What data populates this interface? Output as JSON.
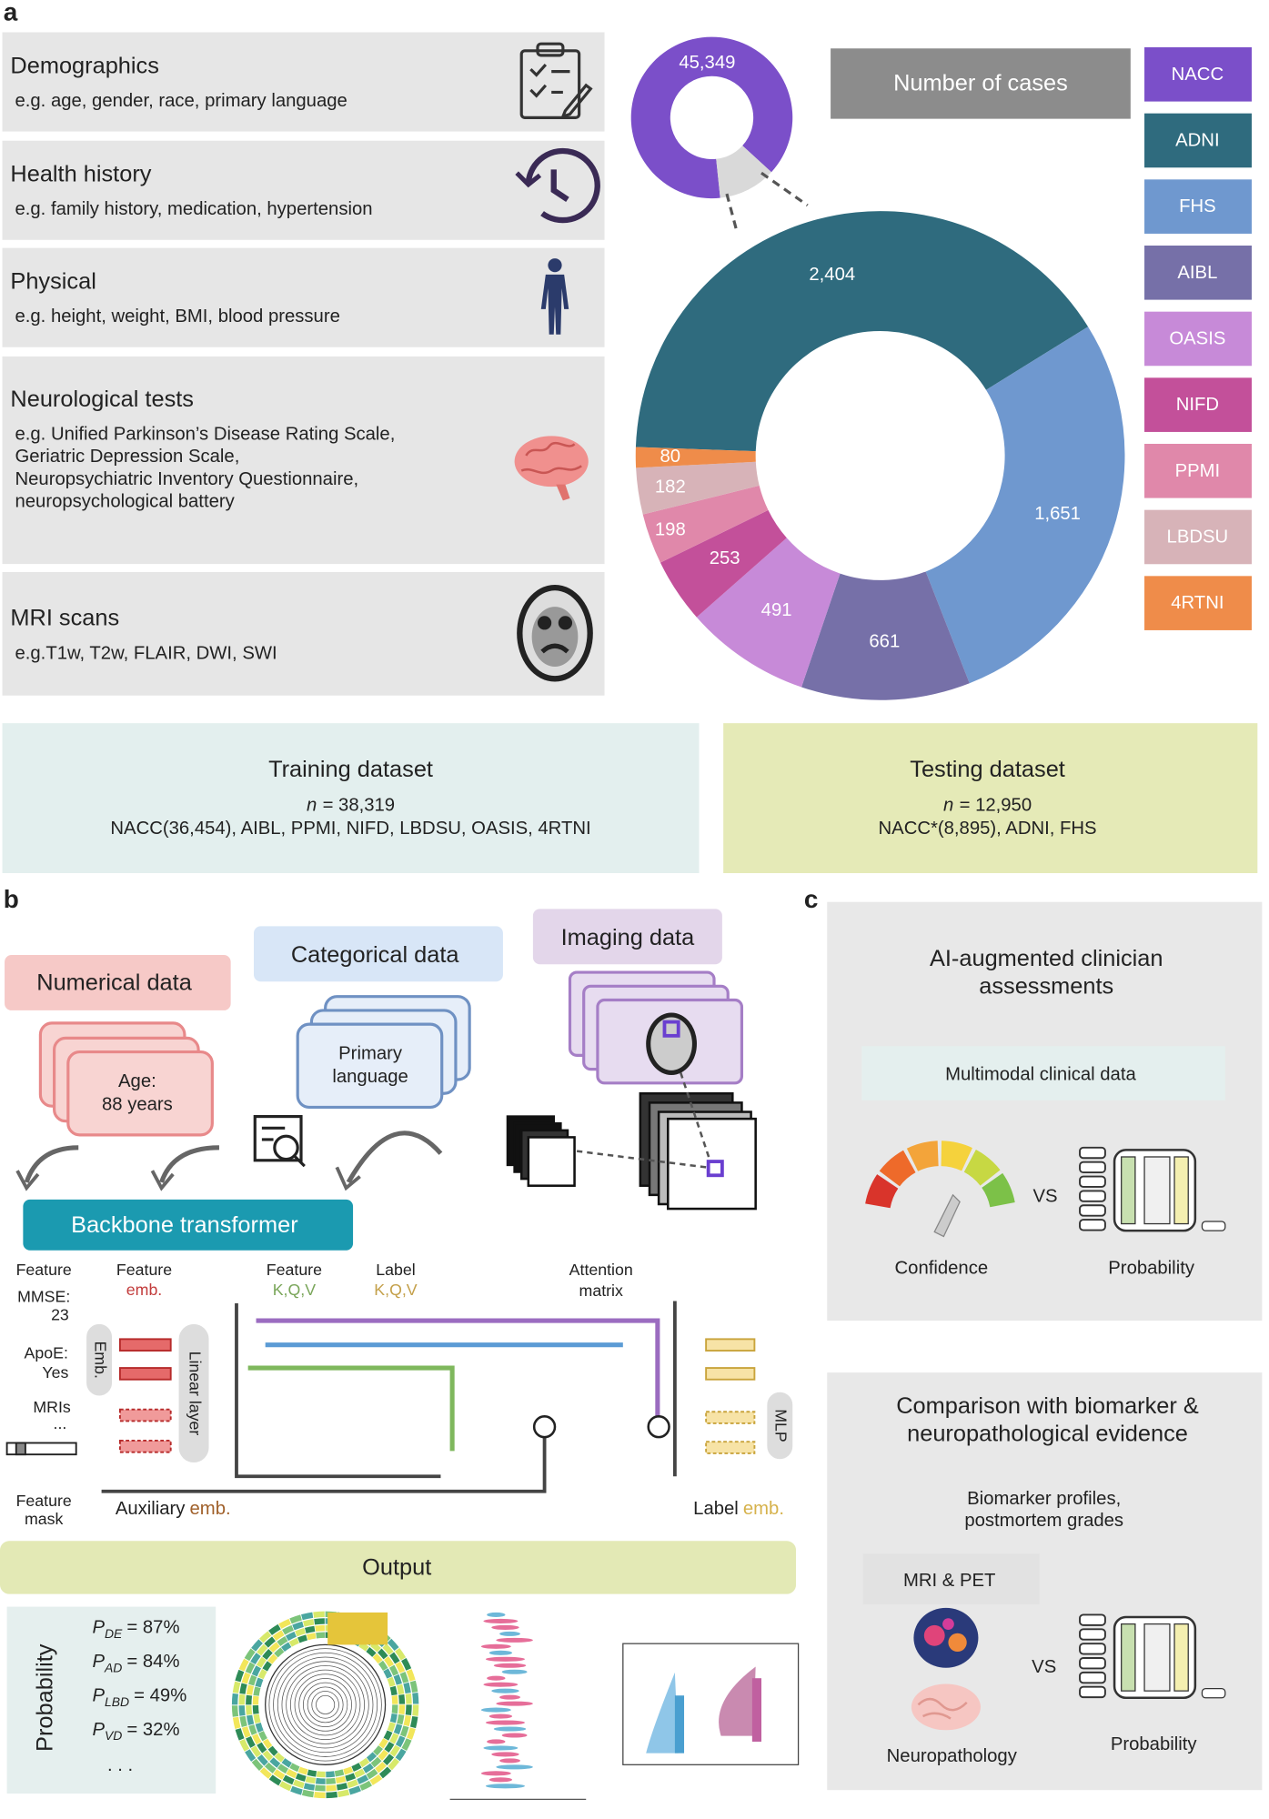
{
  "panel_labels": [
    "a",
    "b",
    "c"
  ],
  "panel_a": {
    "features": [
      {
        "title": "Demographics",
        "lines": [
          "e.g. age, gender, race, primary language"
        ]
      },
      {
        "title": "Health history",
        "lines": [
          "e.g. family history, medication, hypertension"
        ]
      },
      {
        "title": "Physical",
        "lines": [
          "e.g. height, weight, BMI, blood pressure"
        ]
      },
      {
        "title": "Neurological tests",
        "lines": [
          "e.g. Unified Parkinson’s Disease Rating Scale,",
          "Geriatric Depression Scale,",
          "Neuropsychiatric Inventory Questionnaire,",
          "neuropsychological battery"
        ]
      },
      {
        "title": "MRI scans",
        "lines": [
          "e.g.T1w, T2w, FLAIR, DWI, SWI"
        ]
      }
    ],
    "cases": {
      "type": "donut",
      "title": "Number of cases",
      "cohorts": [
        {
          "name": "NACC",
          "color": "#7b4fc9",
          "value": 45349,
          "value_label": "45,349"
        },
        {
          "name": "ADNI",
          "color": "#2f6b7e",
          "value": 2404,
          "value_label": "2,404"
        },
        {
          "name": "FHS",
          "color": "#6f98cf",
          "value": 1651,
          "value_label": "1,651"
        },
        {
          "name": "AIBL",
          "color": "#7670a8",
          "value": 661
        },
        {
          "name": "OASIS",
          "color": "#c78ad8",
          "value": 491
        },
        {
          "name": "NIFD",
          "color": "#c3509a",
          "value": 253
        },
        {
          "name": "PPMI",
          "color": "#e088aa",
          "value": 198
        },
        {
          "name": "LBDSU",
          "color": "#d7b3b8",
          "value": 182
        },
        {
          "name": "4RTNI",
          "color": "#ef8c4a",
          "value": 80
        }
      ]
    },
    "training": {
      "title": "Training dataset",
      "n": "n",
      "n_value": "= 38,319",
      "detail": "NACC(36,454), AIBL, PPMI, NIFD, LBDSU, OASIS, 4RTNI"
    },
    "testing": {
      "title": "Testing dataset",
      "n": "n",
      "n_value": "= 12,950",
      "detail": "NACC*(8,895), ADNI, FHS"
    }
  },
  "panel_b": {
    "inputs": {
      "numerical": "Numerical data",
      "numerical_example": [
        "Age:",
        "88 years"
      ],
      "categorical": "Categorical data",
      "categorical_example": [
        "Primary",
        "language"
      ],
      "imaging": "Imaging data"
    },
    "backbone": "Backbone transformer",
    "features": {
      "header": "Feature",
      "items": [
        [
          "MMSE:",
          "23"
        ],
        [
          "ApoE:",
          "Yes"
        ],
        [
          "MRIs",
          "..."
        ]
      ],
      "mask": [
        "Feature",
        "mask"
      ]
    },
    "feature_emb": [
      "Feature",
      "emb."
    ],
    "emb": "Emb.",
    "linear_layer": "Linear layer",
    "feature_kqv": [
      "Feature",
      "K,Q,V"
    ],
    "label_kqv": [
      "Label",
      "K,Q,V"
    ],
    "attention": [
      "Attention",
      "matrix"
    ],
    "mlp": "MLP",
    "auxiliary_emb": [
      "Auxiliary",
      "emb."
    ],
    "label_emb": [
      "Label",
      "emb."
    ],
    "output": {
      "title": "Output",
      "axis": "Probability",
      "probabilities": [
        {
          "symbol": "P",
          "subscript": "DE",
          "value": "= 87%"
        },
        {
          "symbol": "P",
          "subscript": "AD",
          "value": "= 84%"
        },
        {
          "symbol": "P",
          "subscript": "LBD",
          "value": "= 49%"
        },
        {
          "symbol": "P",
          "subscript": "VD",
          "value": "= 32%"
        }
      ],
      "more": ". . ."
    }
  },
  "panel_c": {
    "top": {
      "title": [
        "AI-augmented clinician",
        "assessments"
      ],
      "data": "Multimodal clinical data",
      "vs": "VS",
      "left": "Confidence",
      "right": "Probability"
    },
    "bottom": {
      "title": [
        "Comparison with biomarker &",
        "neuropathological evidence"
      ],
      "subtitle": [
        "Biomarker profiles,",
        "postmortem grades"
      ],
      "imaging": "MRI & PET",
      "vs": "VS",
      "left": "Neuropathology",
      "right": "Probability"
    }
  }
}
